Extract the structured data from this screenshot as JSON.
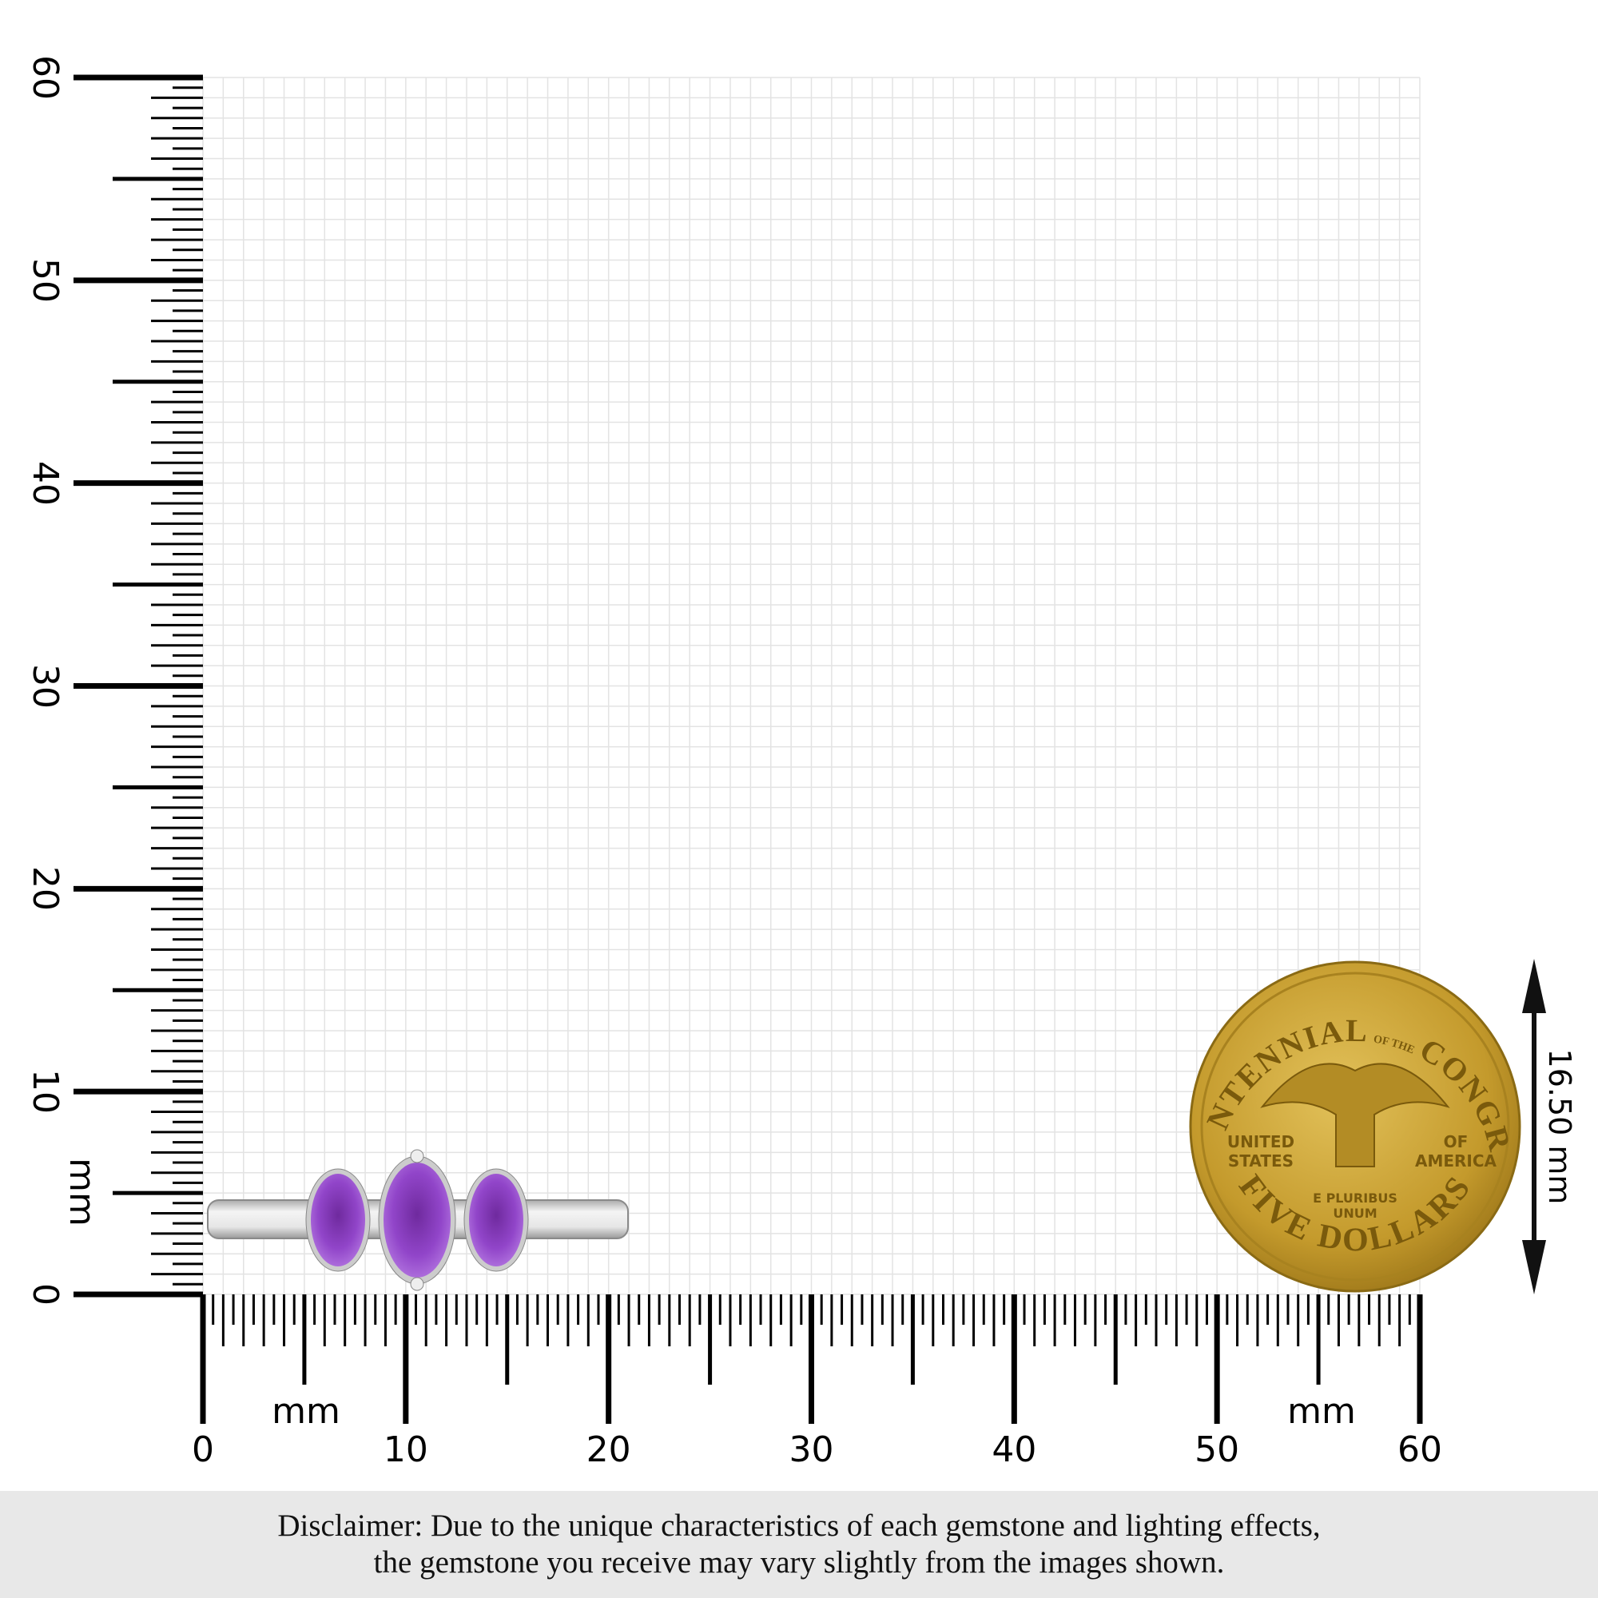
{
  "ruler": {
    "unit": "mm",
    "x_axis": {
      "min": 0,
      "max": 60,
      "labels": [
        "0",
        "10",
        "20",
        "30",
        "40",
        "50",
        "60"
      ],
      "unit_label": "mm",
      "unit_label_right": "mm"
    },
    "y_axis": {
      "min": 0,
      "max": 60,
      "labels": [
        "0",
        "10",
        "20",
        "30",
        "40",
        "50",
        "60"
      ],
      "unit_label": "mm"
    },
    "grid": true,
    "grid_step_mm": 1,
    "grid_color": "#e3e3e3"
  },
  "product": {
    "type": "three-stone oval ring",
    "stone_color": "#8a3fc0",
    "metal_color": "#d9d9d9",
    "stones": 3
  },
  "coin": {
    "top_text": "BICENTENNIAL",
    "of_the": "OF THE",
    "right_text": "CONGRESS",
    "left_mid": [
      "UNITED",
      "STATES"
    ],
    "right_mid": [
      "OF",
      "AMERICA"
    ],
    "motto": [
      "E PLURIBUS",
      "UNUM"
    ],
    "bottom_text": "FIVE DOLLARS",
    "color": "#c9a233"
  },
  "dimension": {
    "label": "16.50 mm"
  },
  "disclaimer": {
    "line1": "Disclaimer: Due to the unique characteristics of each gemstone and lighting effects,",
    "line2": "the gemstone you receive may vary slightly from the images shown."
  }
}
